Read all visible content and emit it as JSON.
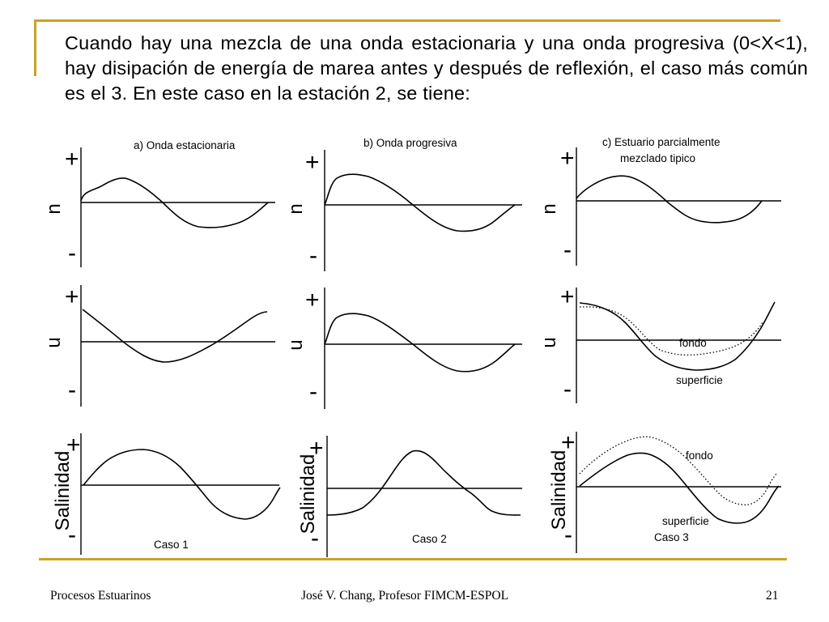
{
  "slide": {
    "body": "Cuando hay una mezcla de una onda estacionaria y una onda progresiva (0<X<1), hay disipación de energía de marea antes y después de reflexión, el caso más común es el 3. En este caso en la estación 2, se  tiene:",
    "accent_color": "#C9A227"
  },
  "figure": {
    "column_titles": [
      "a) Onda estacionaria",
      "b) Onda progresiva",
      "c) Estuario parcialmente",
      "mezclado tipico"
    ],
    "row_labels": [
      "n",
      "u",
      "Salinidad"
    ],
    "plus": "+",
    "minus": "-",
    "curve_labels": {
      "u_fondo": "fondo",
      "u_superficie": "superficie",
      "s_fondo": "fondo",
      "s_superficie": "superficie"
    },
    "case_labels": [
      "Caso 1",
      "Caso 2",
      "Caso 3"
    ]
  },
  "footer": {
    "left": "Procesos Estuarinos",
    "center": "José V. Chang, Profesor FIMCM-ESPOL",
    "page": "21"
  }
}
